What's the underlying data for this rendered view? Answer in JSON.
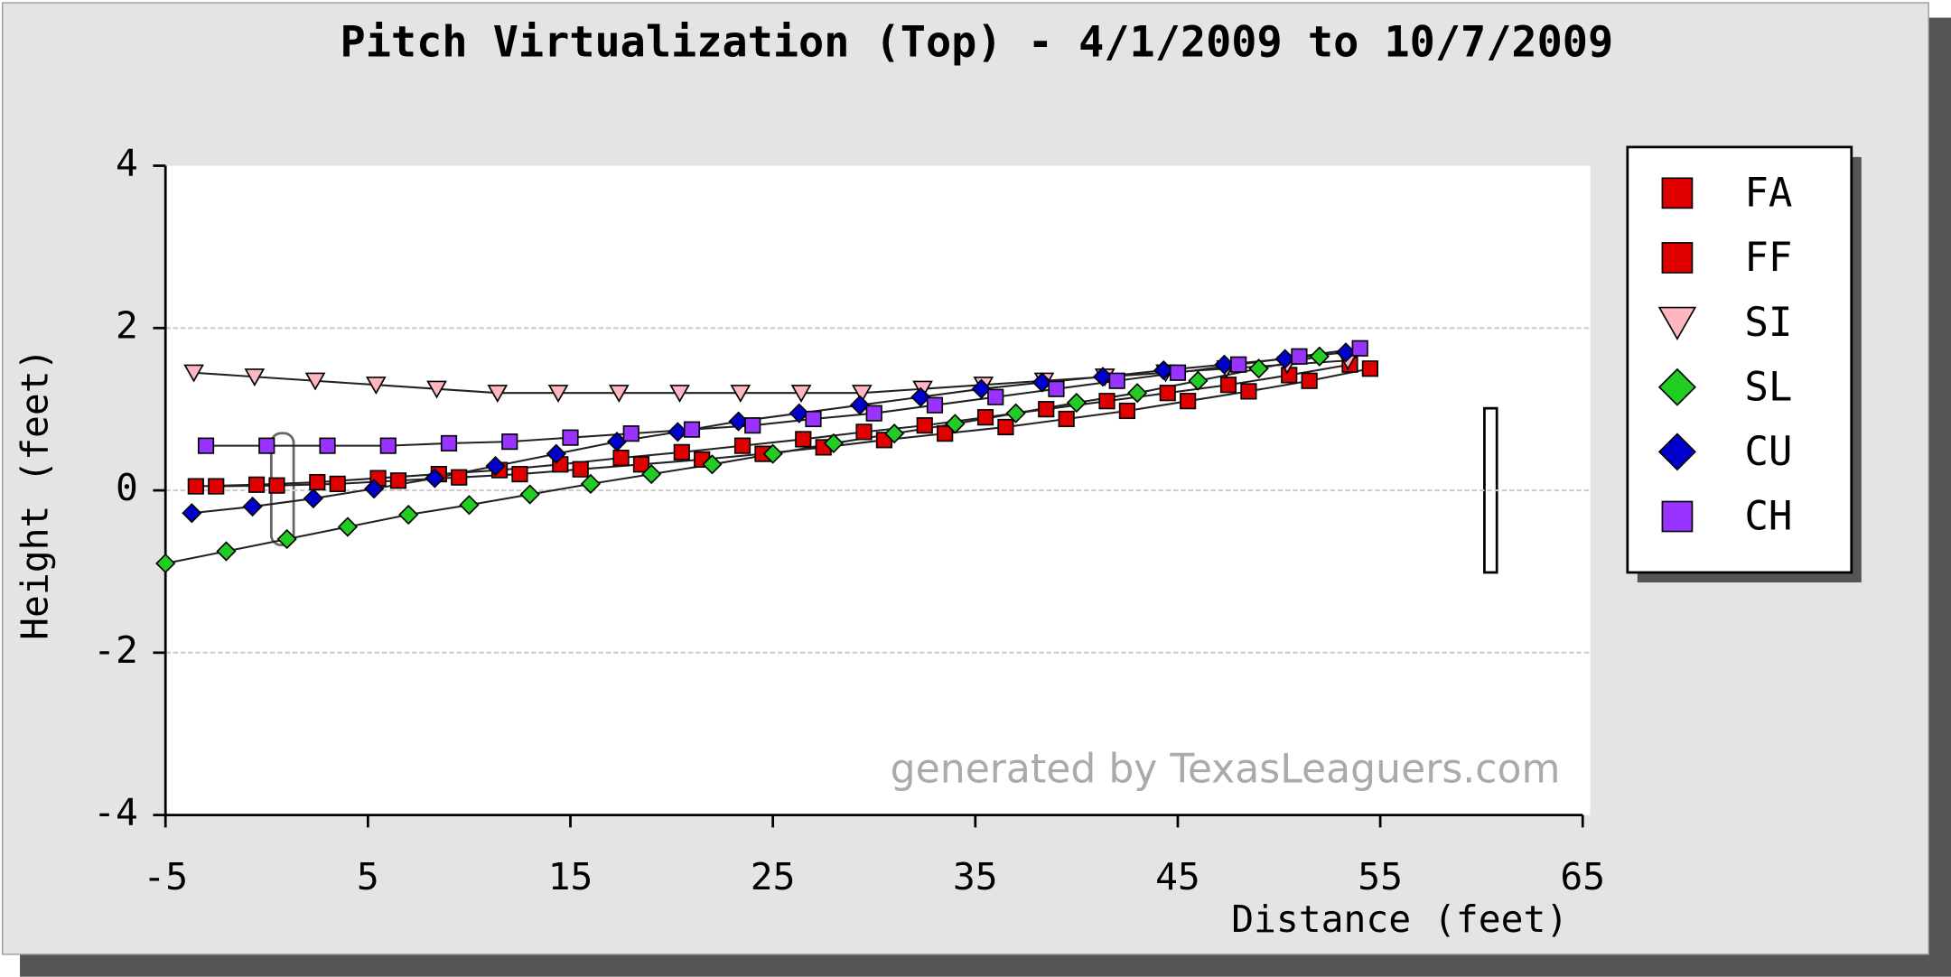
{
  "chart_data": {
    "type": "line",
    "title": "Pitch Virtualization (Top) - 4/1/2009 to 10/7/2009",
    "x_label": "Distance (feet)",
    "y_label": "Height (feet)",
    "watermark": "generated by TexasLeaguers.com",
    "xlim": [
      -5,
      65
    ],
    "xticks": [
      -5,
      5,
      15,
      25,
      35,
      45,
      55,
      65
    ],
    "ylim": [
      -4,
      4
    ],
    "yticks": [
      -4,
      -2,
      0,
      2,
      4
    ],
    "grid": true,
    "legend": "right",
    "series": [
      {
        "name": "FA",
        "color": "#e00000",
        "marker": "square",
        "x": [
          -3.5,
          -0.5,
          2.5,
          5.5,
          8.5,
          11.5,
          14.5,
          17.5,
          20.5,
          23.5,
          26.5,
          29.5,
          32.5,
          35.5,
          38.5,
          41.5,
          44.5,
          47.5,
          50.5,
          53.5
        ],
        "values": [
          0.05,
          0.07,
          0.1,
          0.15,
          0.2,
          0.25,
          0.32,
          0.4,
          0.47,
          0.55,
          0.63,
          0.72,
          0.8,
          0.9,
          1.0,
          1.1,
          1.2,
          1.3,
          1.42,
          1.55
        ]
      },
      {
        "name": "FF",
        "color": "#e00000",
        "marker": "square",
        "x": [
          -2.5,
          0.5,
          3.5,
          6.5,
          9.5,
          12.5,
          15.5,
          18.5,
          21.5,
          24.5,
          27.5,
          30.5,
          33.5,
          36.5,
          39.5,
          42.5,
          45.5,
          48.5,
          51.5,
          54.5
        ],
        "values": [
          0.05,
          0.06,
          0.08,
          0.12,
          0.16,
          0.2,
          0.26,
          0.32,
          0.38,
          0.45,
          0.53,
          0.62,
          0.7,
          0.78,
          0.88,
          0.98,
          1.1,
          1.22,
          1.35,
          1.5
        ]
      },
      {
        "name": "SI",
        "color": "#ffb6c1",
        "marker": "triangle",
        "x": [
          -3.6,
          -0.6,
          2.4,
          5.4,
          8.4,
          11.4,
          14.4,
          17.4,
          20.4,
          23.4,
          26.4,
          29.4,
          32.4,
          35.4,
          38.4,
          41.4,
          44.4,
          47.4,
          50.4,
          53.4
        ],
        "values": [
          1.45,
          1.4,
          1.35,
          1.3,
          1.25,
          1.2,
          1.2,
          1.2,
          1.2,
          1.2,
          1.2,
          1.2,
          1.25,
          1.3,
          1.35,
          1.4,
          1.45,
          1.5,
          1.55,
          1.6
        ]
      },
      {
        "name": "SL",
        "color": "#22cc22",
        "marker": "diamond",
        "x": [
          -5,
          -2,
          1,
          4,
          7,
          10,
          13,
          16,
          19,
          22,
          25,
          28,
          31,
          34,
          37,
          40,
          43,
          46,
          49,
          52
        ],
        "values": [
          -0.9,
          -0.75,
          -0.6,
          -0.45,
          -0.3,
          -0.18,
          -0.05,
          0.08,
          0.2,
          0.32,
          0.45,
          0.58,
          0.7,
          0.82,
          0.95,
          1.08,
          1.2,
          1.35,
          1.5,
          1.65
        ]
      },
      {
        "name": "CU",
        "color": "#0000cc",
        "marker": "diamond",
        "x": [
          -3.7,
          -0.7,
          2.3,
          5.3,
          8.3,
          11.3,
          14.3,
          17.3,
          20.3,
          23.3,
          26.3,
          29.3,
          32.3,
          35.3,
          38.3,
          41.3,
          44.3,
          47.3,
          50.3,
          53.3
        ],
        "values": [
          -0.28,
          -0.2,
          -0.1,
          0.02,
          0.15,
          0.3,
          0.45,
          0.6,
          0.72,
          0.85,
          0.95,
          1.05,
          1.15,
          1.25,
          1.33,
          1.4,
          1.48,
          1.55,
          1.62,
          1.7
        ]
      },
      {
        "name": "CH",
        "color": "#9933ff",
        "marker": "square",
        "x": [
          -3,
          0,
          3,
          6,
          9,
          12,
          15,
          18,
          21,
          24,
          27,
          30,
          33,
          36,
          39,
          42,
          45,
          48,
          51,
          54
        ],
        "values": [
          0.55,
          0.55,
          0.55,
          0.55,
          0.58,
          0.6,
          0.65,
          0.7,
          0.75,
          0.8,
          0.88,
          0.95,
          1.05,
          1.15,
          1.25,
          1.35,
          1.45,
          1.55,
          1.65,
          1.75
        ]
      }
    ]
  }
}
